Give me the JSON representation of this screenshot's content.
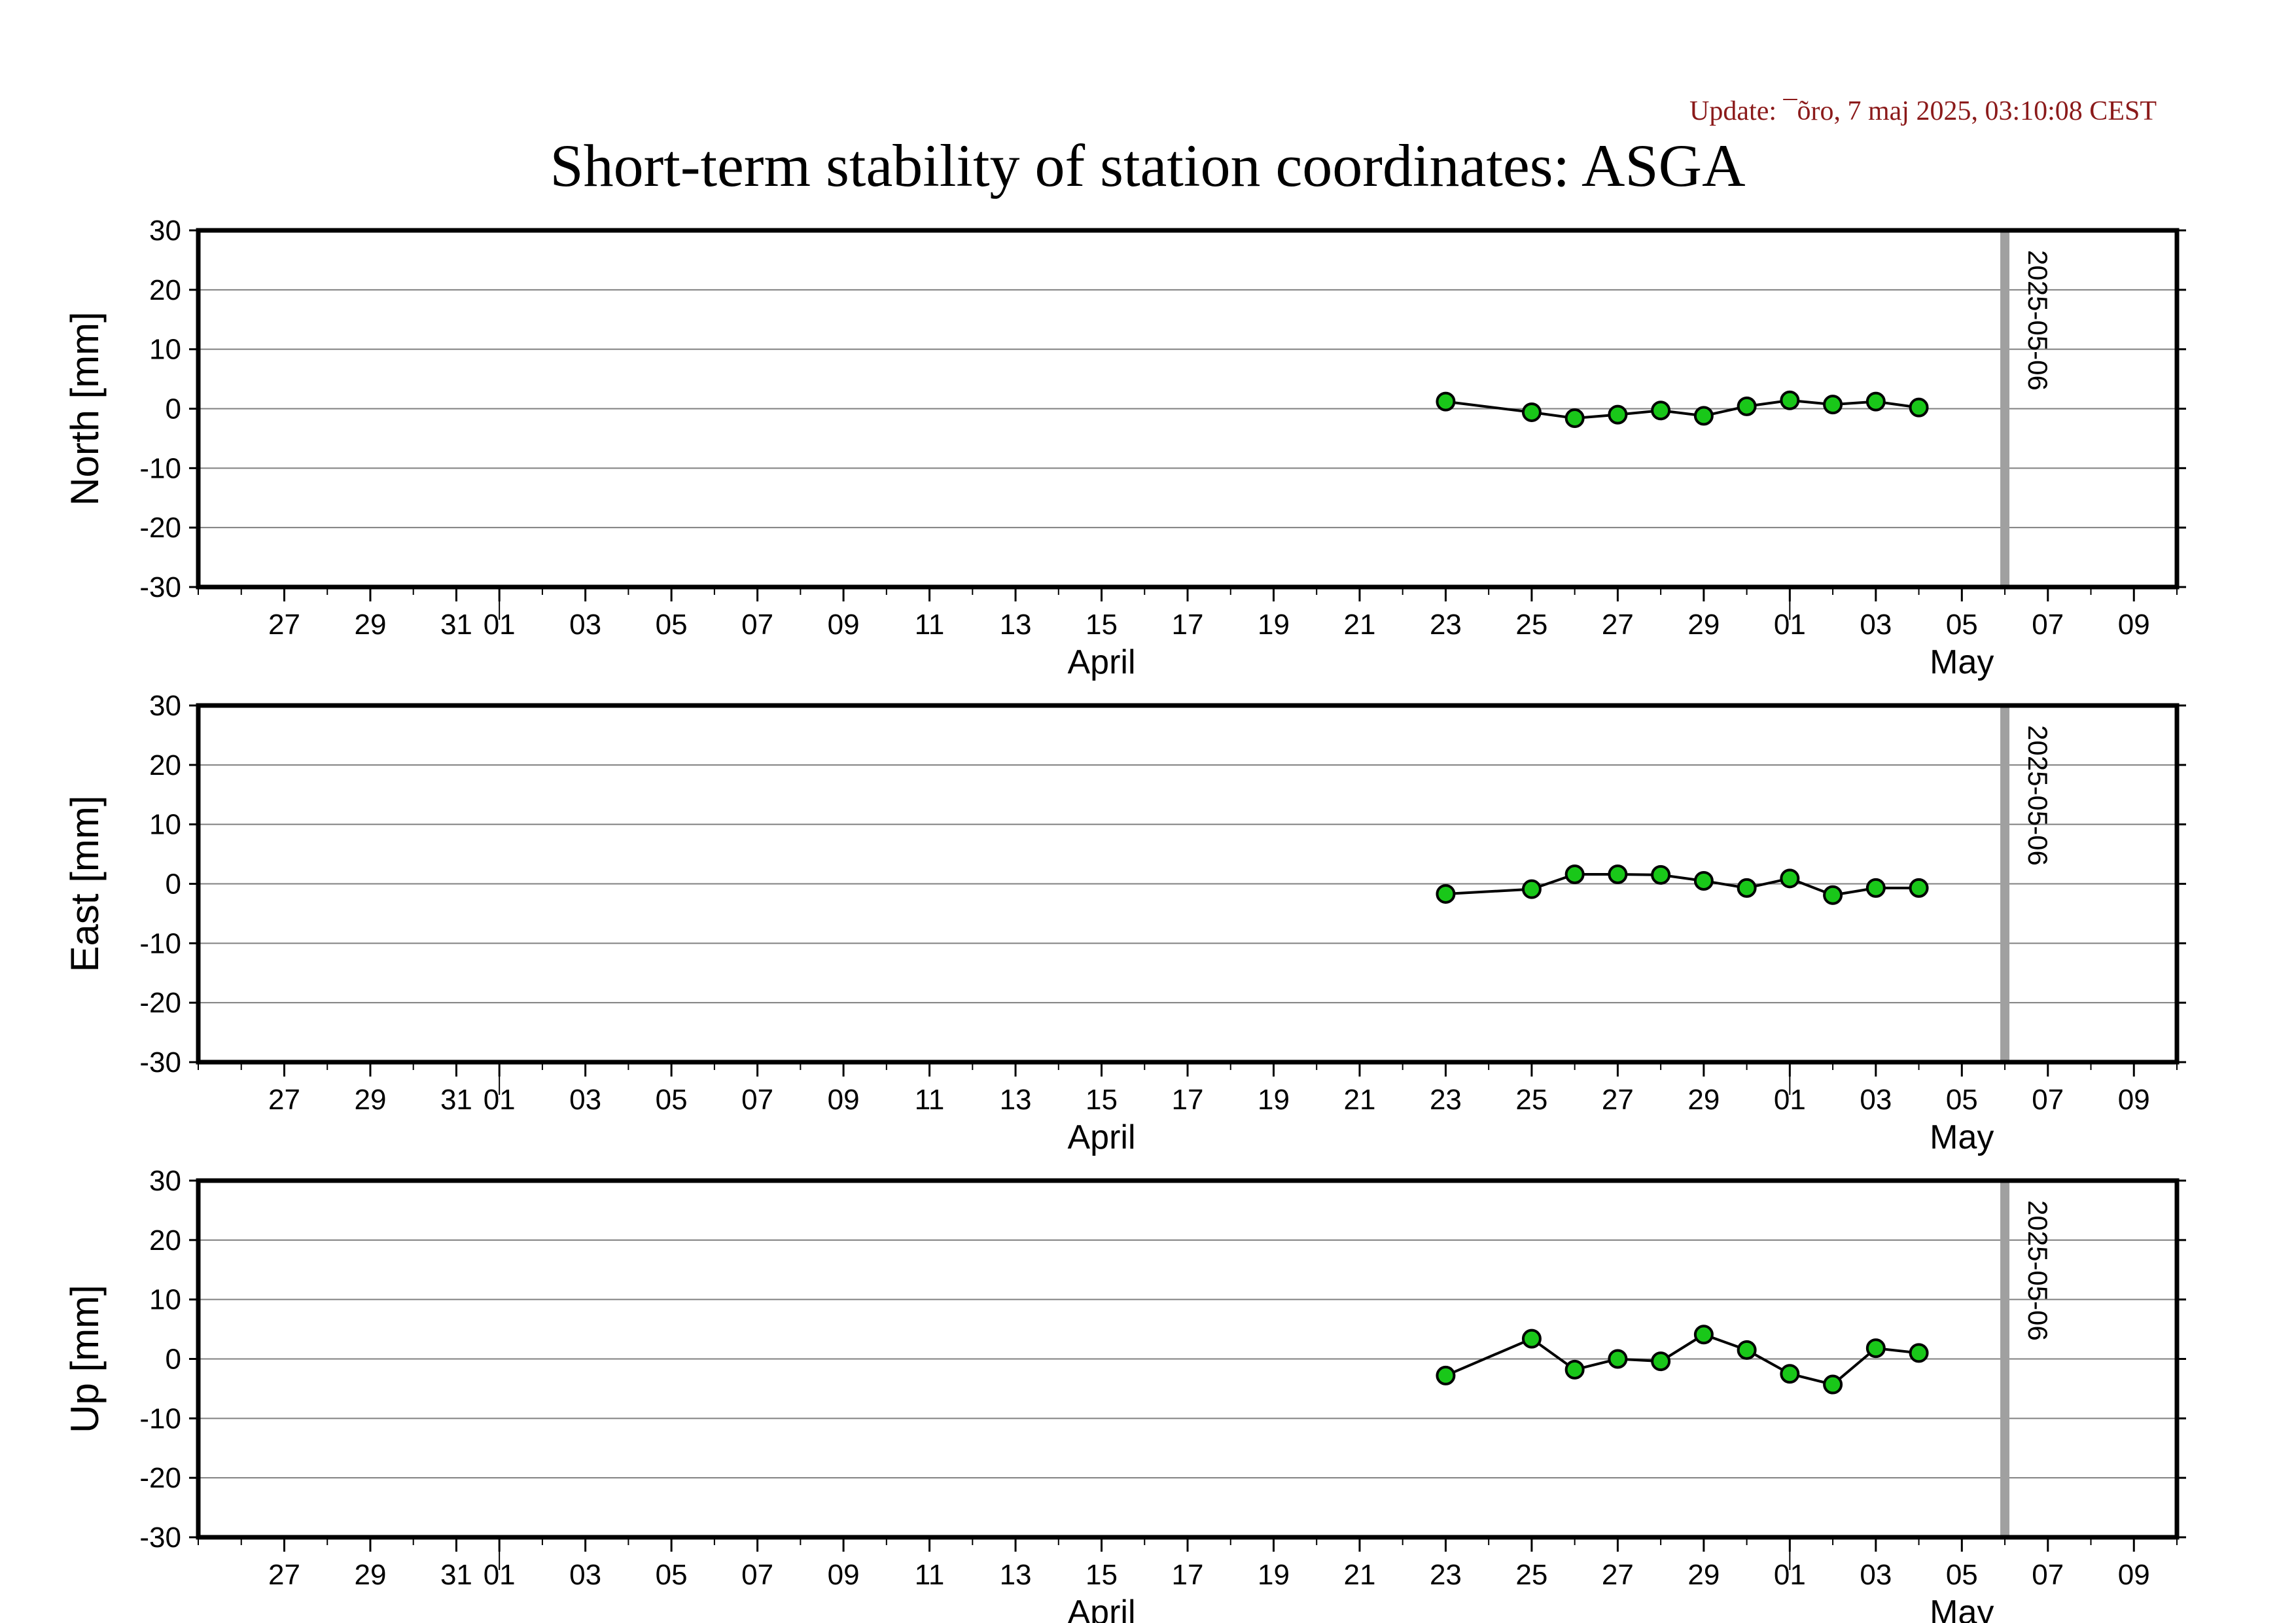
{
  "header": {
    "update_text": "Update: ¯õro, 7 maj 2025, 03:10:08 CEST",
    "title": "Short-term stability of station coordinates: ASGA"
  },
  "colors": {
    "update_text": "#8b1a1a",
    "point_fill": "#19c719",
    "marker_line": "#a0a0a0",
    "grid": "#808080"
  },
  "chart_data": [
    {
      "type": "scatter",
      "name": "north-panel",
      "ylabel": "North [mm]",
      "ylim": [
        -30,
        30
      ],
      "yticks": [
        -30,
        -20,
        -10,
        0,
        10,
        20,
        30
      ],
      "xlim": [
        "2025-03-25",
        "2025-05-10"
      ],
      "x_tick_labels": [
        {
          "date": "2025-03-27",
          "label": "27"
        },
        {
          "date": "2025-03-29",
          "label": "29"
        },
        {
          "date": "2025-03-31",
          "label": "31"
        },
        {
          "date": "2025-04-01",
          "label": "01"
        },
        {
          "date": "2025-04-03",
          "label": "03"
        },
        {
          "date": "2025-04-05",
          "label": "05"
        },
        {
          "date": "2025-04-07",
          "label": "07"
        },
        {
          "date": "2025-04-09",
          "label": "09"
        },
        {
          "date": "2025-04-11",
          "label": "11"
        },
        {
          "date": "2025-04-13",
          "label": "13"
        },
        {
          "date": "2025-04-15",
          "label": "15"
        },
        {
          "date": "2025-04-17",
          "label": "17"
        },
        {
          "date": "2025-04-19",
          "label": "19"
        },
        {
          "date": "2025-04-21",
          "label": "21"
        },
        {
          "date": "2025-04-23",
          "label": "23"
        },
        {
          "date": "2025-04-25",
          "label": "25"
        },
        {
          "date": "2025-04-27",
          "label": "27"
        },
        {
          "date": "2025-04-29",
          "label": "29"
        },
        {
          "date": "2025-05-01",
          "label": "01"
        },
        {
          "date": "2025-05-03",
          "label": "03"
        },
        {
          "date": "2025-05-05",
          "label": "05"
        },
        {
          "date": "2025-05-07",
          "label": "07"
        },
        {
          "date": "2025-05-09",
          "label": "09"
        }
      ],
      "month_labels": [
        {
          "date": "2025-04-15",
          "label": "April"
        },
        {
          "date": "2025-05-05",
          "label": "May"
        }
      ],
      "month_boundaries": [
        "2025-04-01",
        "2025-05-01"
      ],
      "marker": {
        "date": "2025-05-06",
        "label": "2025-05-06"
      },
      "points": [
        {
          "x": "2025-04-23",
          "y": 1.2
        },
        {
          "x": "2025-04-25",
          "y": -0.6
        },
        {
          "x": "2025-04-26",
          "y": -1.6
        },
        {
          "x": "2025-04-27",
          "y": -1.0
        },
        {
          "x": "2025-04-28",
          "y": -0.3
        },
        {
          "x": "2025-04-29",
          "y": -1.2
        },
        {
          "x": "2025-04-30",
          "y": 0.4
        },
        {
          "x": "2025-05-01",
          "y": 1.4
        },
        {
          "x": "2025-05-02",
          "y": 0.7
        },
        {
          "x": "2025-05-03",
          "y": 1.2
        },
        {
          "x": "2025-05-04",
          "y": 0.2
        }
      ]
    },
    {
      "type": "scatter",
      "name": "east-panel",
      "ylabel": "East [mm]",
      "ylim": [
        -30,
        30
      ],
      "yticks": [
        -30,
        -20,
        -10,
        0,
        10,
        20,
        30
      ],
      "xlim": [
        "2025-03-25",
        "2025-05-10"
      ],
      "x_tick_labels": [
        {
          "date": "2025-03-27",
          "label": "27"
        },
        {
          "date": "2025-03-29",
          "label": "29"
        },
        {
          "date": "2025-03-31",
          "label": "31"
        },
        {
          "date": "2025-04-01",
          "label": "01"
        },
        {
          "date": "2025-04-03",
          "label": "03"
        },
        {
          "date": "2025-04-05",
          "label": "05"
        },
        {
          "date": "2025-04-07",
          "label": "07"
        },
        {
          "date": "2025-04-09",
          "label": "09"
        },
        {
          "date": "2025-04-11",
          "label": "11"
        },
        {
          "date": "2025-04-13",
          "label": "13"
        },
        {
          "date": "2025-04-15",
          "label": "15"
        },
        {
          "date": "2025-04-17",
          "label": "17"
        },
        {
          "date": "2025-04-19",
          "label": "19"
        },
        {
          "date": "2025-04-21",
          "label": "21"
        },
        {
          "date": "2025-04-23",
          "label": "23"
        },
        {
          "date": "2025-04-25",
          "label": "25"
        },
        {
          "date": "2025-04-27",
          "label": "27"
        },
        {
          "date": "2025-04-29",
          "label": "29"
        },
        {
          "date": "2025-05-01",
          "label": "01"
        },
        {
          "date": "2025-05-03",
          "label": "03"
        },
        {
          "date": "2025-05-05",
          "label": "05"
        },
        {
          "date": "2025-05-07",
          "label": "07"
        },
        {
          "date": "2025-05-09",
          "label": "09"
        }
      ],
      "month_labels": [
        {
          "date": "2025-04-15",
          "label": "April"
        },
        {
          "date": "2025-05-05",
          "label": "May"
        }
      ],
      "month_boundaries": [
        "2025-04-01",
        "2025-05-01"
      ],
      "marker": {
        "date": "2025-05-06",
        "label": "2025-05-06"
      },
      "points": [
        {
          "x": "2025-04-23",
          "y": -1.7
        },
        {
          "x": "2025-04-25",
          "y": -0.9
        },
        {
          "x": "2025-04-26",
          "y": 1.6
        },
        {
          "x": "2025-04-27",
          "y": 1.6
        },
        {
          "x": "2025-04-28",
          "y": 1.5
        },
        {
          "x": "2025-04-29",
          "y": 0.5
        },
        {
          "x": "2025-04-30",
          "y": -0.7
        },
        {
          "x": "2025-05-01",
          "y": 0.9
        },
        {
          "x": "2025-05-02",
          "y": -1.9
        },
        {
          "x": "2025-05-03",
          "y": -0.7
        },
        {
          "x": "2025-05-04",
          "y": -0.7
        }
      ]
    },
    {
      "type": "scatter",
      "name": "up-panel",
      "ylabel": "Up [mm]",
      "ylim": [
        -30,
        30
      ],
      "yticks": [
        -30,
        -20,
        -10,
        0,
        10,
        20,
        30
      ],
      "xlim": [
        "2025-03-25",
        "2025-05-10"
      ],
      "x_tick_labels": [
        {
          "date": "2025-03-27",
          "label": "27"
        },
        {
          "date": "2025-03-29",
          "label": "29"
        },
        {
          "date": "2025-03-31",
          "label": "31"
        },
        {
          "date": "2025-04-01",
          "label": "01"
        },
        {
          "date": "2025-04-03",
          "label": "03"
        },
        {
          "date": "2025-04-05",
          "label": "05"
        },
        {
          "date": "2025-04-07",
          "label": "07"
        },
        {
          "date": "2025-04-09",
          "label": "09"
        },
        {
          "date": "2025-04-11",
          "label": "11"
        },
        {
          "date": "2025-04-13",
          "label": "13"
        },
        {
          "date": "2025-04-15",
          "label": "15"
        },
        {
          "date": "2025-04-17",
          "label": "17"
        },
        {
          "date": "2025-04-19",
          "label": "19"
        },
        {
          "date": "2025-04-21",
          "label": "21"
        },
        {
          "date": "2025-04-23",
          "label": "23"
        },
        {
          "date": "2025-04-25",
          "label": "25"
        },
        {
          "date": "2025-04-27",
          "label": "27"
        },
        {
          "date": "2025-04-29",
          "label": "29"
        },
        {
          "date": "2025-05-01",
          "label": "01"
        },
        {
          "date": "2025-05-03",
          "label": "03"
        },
        {
          "date": "2025-05-05",
          "label": "05"
        },
        {
          "date": "2025-05-07",
          "label": "07"
        },
        {
          "date": "2025-05-09",
          "label": "09"
        }
      ],
      "month_labels": [
        {
          "date": "2025-04-15",
          "label": "April"
        },
        {
          "date": "2025-05-05",
          "label": "May"
        }
      ],
      "month_boundaries": [
        "2025-04-01",
        "2025-05-01"
      ],
      "marker": {
        "date": "2025-05-06",
        "label": "2025-05-06"
      },
      "points": [
        {
          "x": "2025-04-23",
          "y": -2.8
        },
        {
          "x": "2025-04-25",
          "y": 3.4
        },
        {
          "x": "2025-04-26",
          "y": -1.8
        },
        {
          "x": "2025-04-27",
          "y": 0.0
        },
        {
          "x": "2025-04-28",
          "y": -0.4
        },
        {
          "x": "2025-04-29",
          "y": 4.1
        },
        {
          "x": "2025-04-30",
          "y": 1.5
        },
        {
          "x": "2025-05-01",
          "y": -2.5
        },
        {
          "x": "2025-05-02",
          "y": -4.3
        },
        {
          "x": "2025-05-03",
          "y": 1.8
        },
        {
          "x": "2025-05-04",
          "y": 1.0
        }
      ]
    }
  ]
}
